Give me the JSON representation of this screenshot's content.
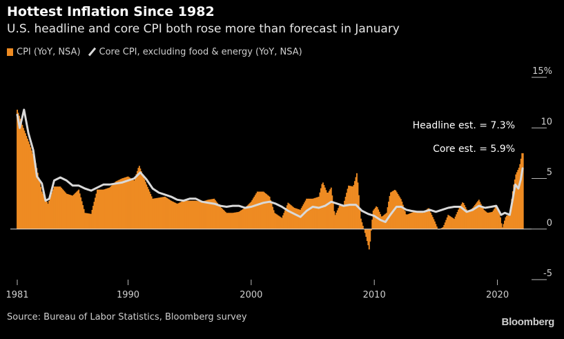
{
  "header": {
    "title": "Hottest Inflation Since 1982",
    "subtitle": "U.S. headline and core CPI both rose more than forecast in January"
  },
  "legend": {
    "cpi_label": "CPI (YoY, NSA)",
    "core_label": "Core CPI, excluding food & energy (YoY, NSA)"
  },
  "footer": {
    "source": "Source: Bureau of Labor Statistics, Bloomberg survey",
    "brand": "Bloomberg"
  },
  "colors": {
    "background": "#000000",
    "cpi_bar": "#ee8b22",
    "core_line": "#d9d9d9",
    "axis": "#bbbbbb",
    "text": "#ffffff"
  },
  "chart_data": {
    "type": "bar",
    "title": "Hottest Inflation Since 1982",
    "subtitle": "U.S. headline and core CPI both rose more than forecast in January",
    "xlabel": "",
    "ylabel": "",
    "y_unit": "%",
    "y_axis_side": "right",
    "ylim": [
      -5,
      15
    ],
    "xlim": [
      1981.0,
      2022.1
    ],
    "x_tick_labels": [
      "1981",
      "1990",
      "2000",
      "2010",
      "2020"
    ],
    "y_tick_labels": [
      "15%",
      "10",
      "5",
      "0",
      "-5"
    ],
    "y_ticks": [
      15,
      10,
      5,
      0,
      -5
    ],
    "grid": false,
    "legend_position": "top-left",
    "annotations": [
      "Headline est. = 7.3%",
      "Core est. = 5.9%"
    ],
    "source": "Source: Bureau of Labor Statistics, Bloomberg survey",
    "series": [
      {
        "name": "CPI (YoY, NSA)",
        "type": "bar",
        "color": "#ee8b22",
        "points": [
          [
            1981.0,
            11.8
          ],
          [
            1981.5,
            10.0
          ],
          [
            1982.0,
            8.4
          ],
          [
            1982.5,
            6.5
          ],
          [
            1983.0,
            3.7
          ],
          [
            1983.5,
            2.5
          ],
          [
            1984.0,
            4.2
          ],
          [
            1984.5,
            4.2
          ],
          [
            1985.0,
            3.5
          ],
          [
            1985.5,
            3.3
          ],
          [
            1986.0,
            3.9
          ],
          [
            1986.5,
            1.6
          ],
          [
            1987.0,
            1.5
          ],
          [
            1987.5,
            3.9
          ],
          [
            1988.0,
            3.9
          ],
          [
            1988.5,
            4.1
          ],
          [
            1989.0,
            4.7
          ],
          [
            1989.5,
            5.0
          ],
          [
            1990.0,
            5.2
          ],
          [
            1990.5,
            4.8
          ],
          [
            1990.9,
            6.3
          ],
          [
            1991.5,
            4.4
          ],
          [
            1992.0,
            3.0
          ],
          [
            1992.5,
            3.1
          ],
          [
            1993.0,
            3.2
          ],
          [
            1993.5,
            2.8
          ],
          [
            1994.0,
            2.5
          ],
          [
            1994.5,
            2.8
          ],
          [
            1995.0,
            2.8
          ],
          [
            1995.5,
            2.8
          ],
          [
            1996.0,
            2.7
          ],
          [
            1996.5,
            2.9
          ],
          [
            1997.0,
            3.0
          ],
          [
            1997.5,
            2.2
          ],
          [
            1998.0,
            1.6
          ],
          [
            1998.5,
            1.6
          ],
          [
            1999.0,
            1.7
          ],
          [
            1999.5,
            2.1
          ],
          [
            2000.0,
            2.7
          ],
          [
            2000.5,
            3.7
          ],
          [
            2001.0,
            3.7
          ],
          [
            2001.5,
            3.2
          ],
          [
            2001.9,
            1.6
          ],
          [
            2002.5,
            1.1
          ],
          [
            2003.0,
            2.6
          ],
          [
            2003.5,
            2.1
          ],
          [
            2004.0,
            1.9
          ],
          [
            2004.5,
            3.0
          ],
          [
            2005.0,
            3.0
          ],
          [
            2005.5,
            3.2
          ],
          [
            2005.8,
            4.7
          ],
          [
            2006.2,
            3.5
          ],
          [
            2006.5,
            4.1
          ],
          [
            2006.8,
            1.3
          ],
          [
            2007.2,
            2.4
          ],
          [
            2007.5,
            2.4
          ],
          [
            2007.9,
            4.3
          ],
          [
            2008.3,
            4.2
          ],
          [
            2008.6,
            5.6
          ],
          [
            2008.9,
            1.1
          ],
          [
            2009.3,
            -0.6
          ],
          [
            2009.6,
            -2.1
          ],
          [
            2009.9,
            1.8
          ],
          [
            2010.2,
            2.3
          ],
          [
            2010.6,
            1.2
          ],
          [
            2011.0,
            1.6
          ],
          [
            2011.3,
            3.6
          ],
          [
            2011.7,
            3.9
          ],
          [
            2012.2,
            2.9
          ],
          [
            2012.6,
            1.4
          ],
          [
            2013.0,
            1.6
          ],
          [
            2013.5,
            1.8
          ],
          [
            2014.0,
            1.6
          ],
          [
            2014.4,
            2.1
          ],
          [
            2014.9,
            0.8
          ],
          [
            2015.2,
            -0.1
          ],
          [
            2015.6,
            0.2
          ],
          [
            2016.0,
            1.4
          ],
          [
            2016.5,
            1.0
          ],
          [
            2016.9,
            2.1
          ],
          [
            2017.2,
            2.7
          ],
          [
            2017.6,
            1.7
          ],
          [
            2018.0,
            2.1
          ],
          [
            2018.5,
            2.9
          ],
          [
            2018.9,
            1.9
          ],
          [
            2019.2,
            1.6
          ],
          [
            2019.6,
            1.7
          ],
          [
            2019.9,
            2.3
          ],
          [
            2020.2,
            1.5
          ],
          [
            2020.4,
            0.1
          ],
          [
            2020.7,
            1.3
          ],
          [
            2021.0,
            1.4
          ],
          [
            2021.3,
            4.2
          ],
          [
            2021.5,
            5.4
          ],
          [
            2021.8,
            6.2
          ],
          [
            2022.0,
            7.5
          ]
        ]
      },
      {
        "name": "Core CPI, excluding food & energy (YoY, NSA)",
        "type": "line",
        "color": "#d9d9d9",
        "points": [
          [
            1981.0,
            11.3
          ],
          [
            1981.2,
            10.0
          ],
          [
            1981.55,
            11.8
          ],
          [
            1981.9,
            9.5
          ],
          [
            1982.3,
            7.8
          ],
          [
            1982.6,
            5.2
          ],
          [
            1983.0,
            4.5
          ],
          [
            1983.3,
            2.8
          ],
          [
            1983.6,
            3.0
          ],
          [
            1984.0,
            4.8
          ],
          [
            1984.5,
            5.1
          ],
          [
            1985.0,
            4.8
          ],
          [
            1985.5,
            4.3
          ],
          [
            1986.0,
            4.3
          ],
          [
            1986.5,
            4.0
          ],
          [
            1987.0,
            3.8
          ],
          [
            1987.5,
            4.1
          ],
          [
            1988.0,
            4.4
          ],
          [
            1988.5,
            4.4
          ],
          [
            1989.0,
            4.5
          ],
          [
            1989.5,
            4.6
          ],
          [
            1990.0,
            4.8
          ],
          [
            1990.5,
            5.0
          ],
          [
            1991.0,
            5.6
          ],
          [
            1991.5,
            4.9
          ],
          [
            1992.0,
            4.0
          ],
          [
            1992.5,
            3.6
          ],
          [
            1993.0,
            3.4
          ],
          [
            1993.5,
            3.2
          ],
          [
            1994.0,
            2.9
          ],
          [
            1994.5,
            2.8
          ],
          [
            1995.0,
            3.0
          ],
          [
            1995.5,
            3.0
          ],
          [
            1996.0,
            2.7
          ],
          [
            1996.5,
            2.6
          ],
          [
            1997.0,
            2.5
          ],
          [
            1997.5,
            2.3
          ],
          [
            1998.0,
            2.2
          ],
          [
            1998.5,
            2.3
          ],
          [
            1999.0,
            2.3
          ],
          [
            1999.5,
            2.1
          ],
          [
            2000.0,
            2.2
          ],
          [
            2000.5,
            2.4
          ],
          [
            2001.0,
            2.6
          ],
          [
            2001.5,
            2.7
          ],
          [
            2002.0,
            2.5
          ],
          [
            2002.5,
            2.2
          ],
          [
            2003.0,
            1.8
          ],
          [
            2003.5,
            1.5
          ],
          [
            2004.0,
            1.2
          ],
          [
            2004.5,
            1.8
          ],
          [
            2005.0,
            2.2
          ],
          [
            2005.5,
            2.1
          ],
          [
            2006.0,
            2.3
          ],
          [
            2006.5,
            2.7
          ],
          [
            2007.0,
            2.5
          ],
          [
            2007.5,
            2.3
          ],
          [
            2008.0,
            2.4
          ],
          [
            2008.5,
            2.4
          ],
          [
            2009.0,
            1.8
          ],
          [
            2009.5,
            1.5
          ],
          [
            2010.0,
            1.3
          ],
          [
            2010.5,
            0.9
          ],
          [
            2010.9,
            0.7
          ],
          [
            2011.3,
            1.4
          ],
          [
            2011.8,
            2.2
          ],
          [
            2012.2,
            2.2
          ],
          [
            2012.6,
            1.9
          ],
          [
            2013.0,
            1.8
          ],
          [
            2013.5,
            1.7
          ],
          [
            2014.0,
            1.7
          ],
          [
            2014.5,
            1.9
          ],
          [
            2015.0,
            1.7
          ],
          [
            2015.5,
            1.9
          ],
          [
            2016.0,
            2.1
          ],
          [
            2016.5,
            2.2
          ],
          [
            2017.0,
            2.2
          ],
          [
            2017.5,
            1.7
          ],
          [
            2018.0,
            1.9
          ],
          [
            2018.5,
            2.3
          ],
          [
            2019.0,
            2.1
          ],
          [
            2019.5,
            2.2
          ],
          [
            2019.9,
            2.3
          ],
          [
            2020.3,
            1.4
          ],
          [
            2020.6,
            1.6
          ],
          [
            2021.0,
            1.4
          ],
          [
            2021.25,
            3.0
          ],
          [
            2021.45,
            4.4
          ],
          [
            2021.7,
            4.0
          ],
          [
            2021.9,
            4.9
          ],
          [
            2022.05,
            6.0
          ]
        ]
      }
    ]
  }
}
